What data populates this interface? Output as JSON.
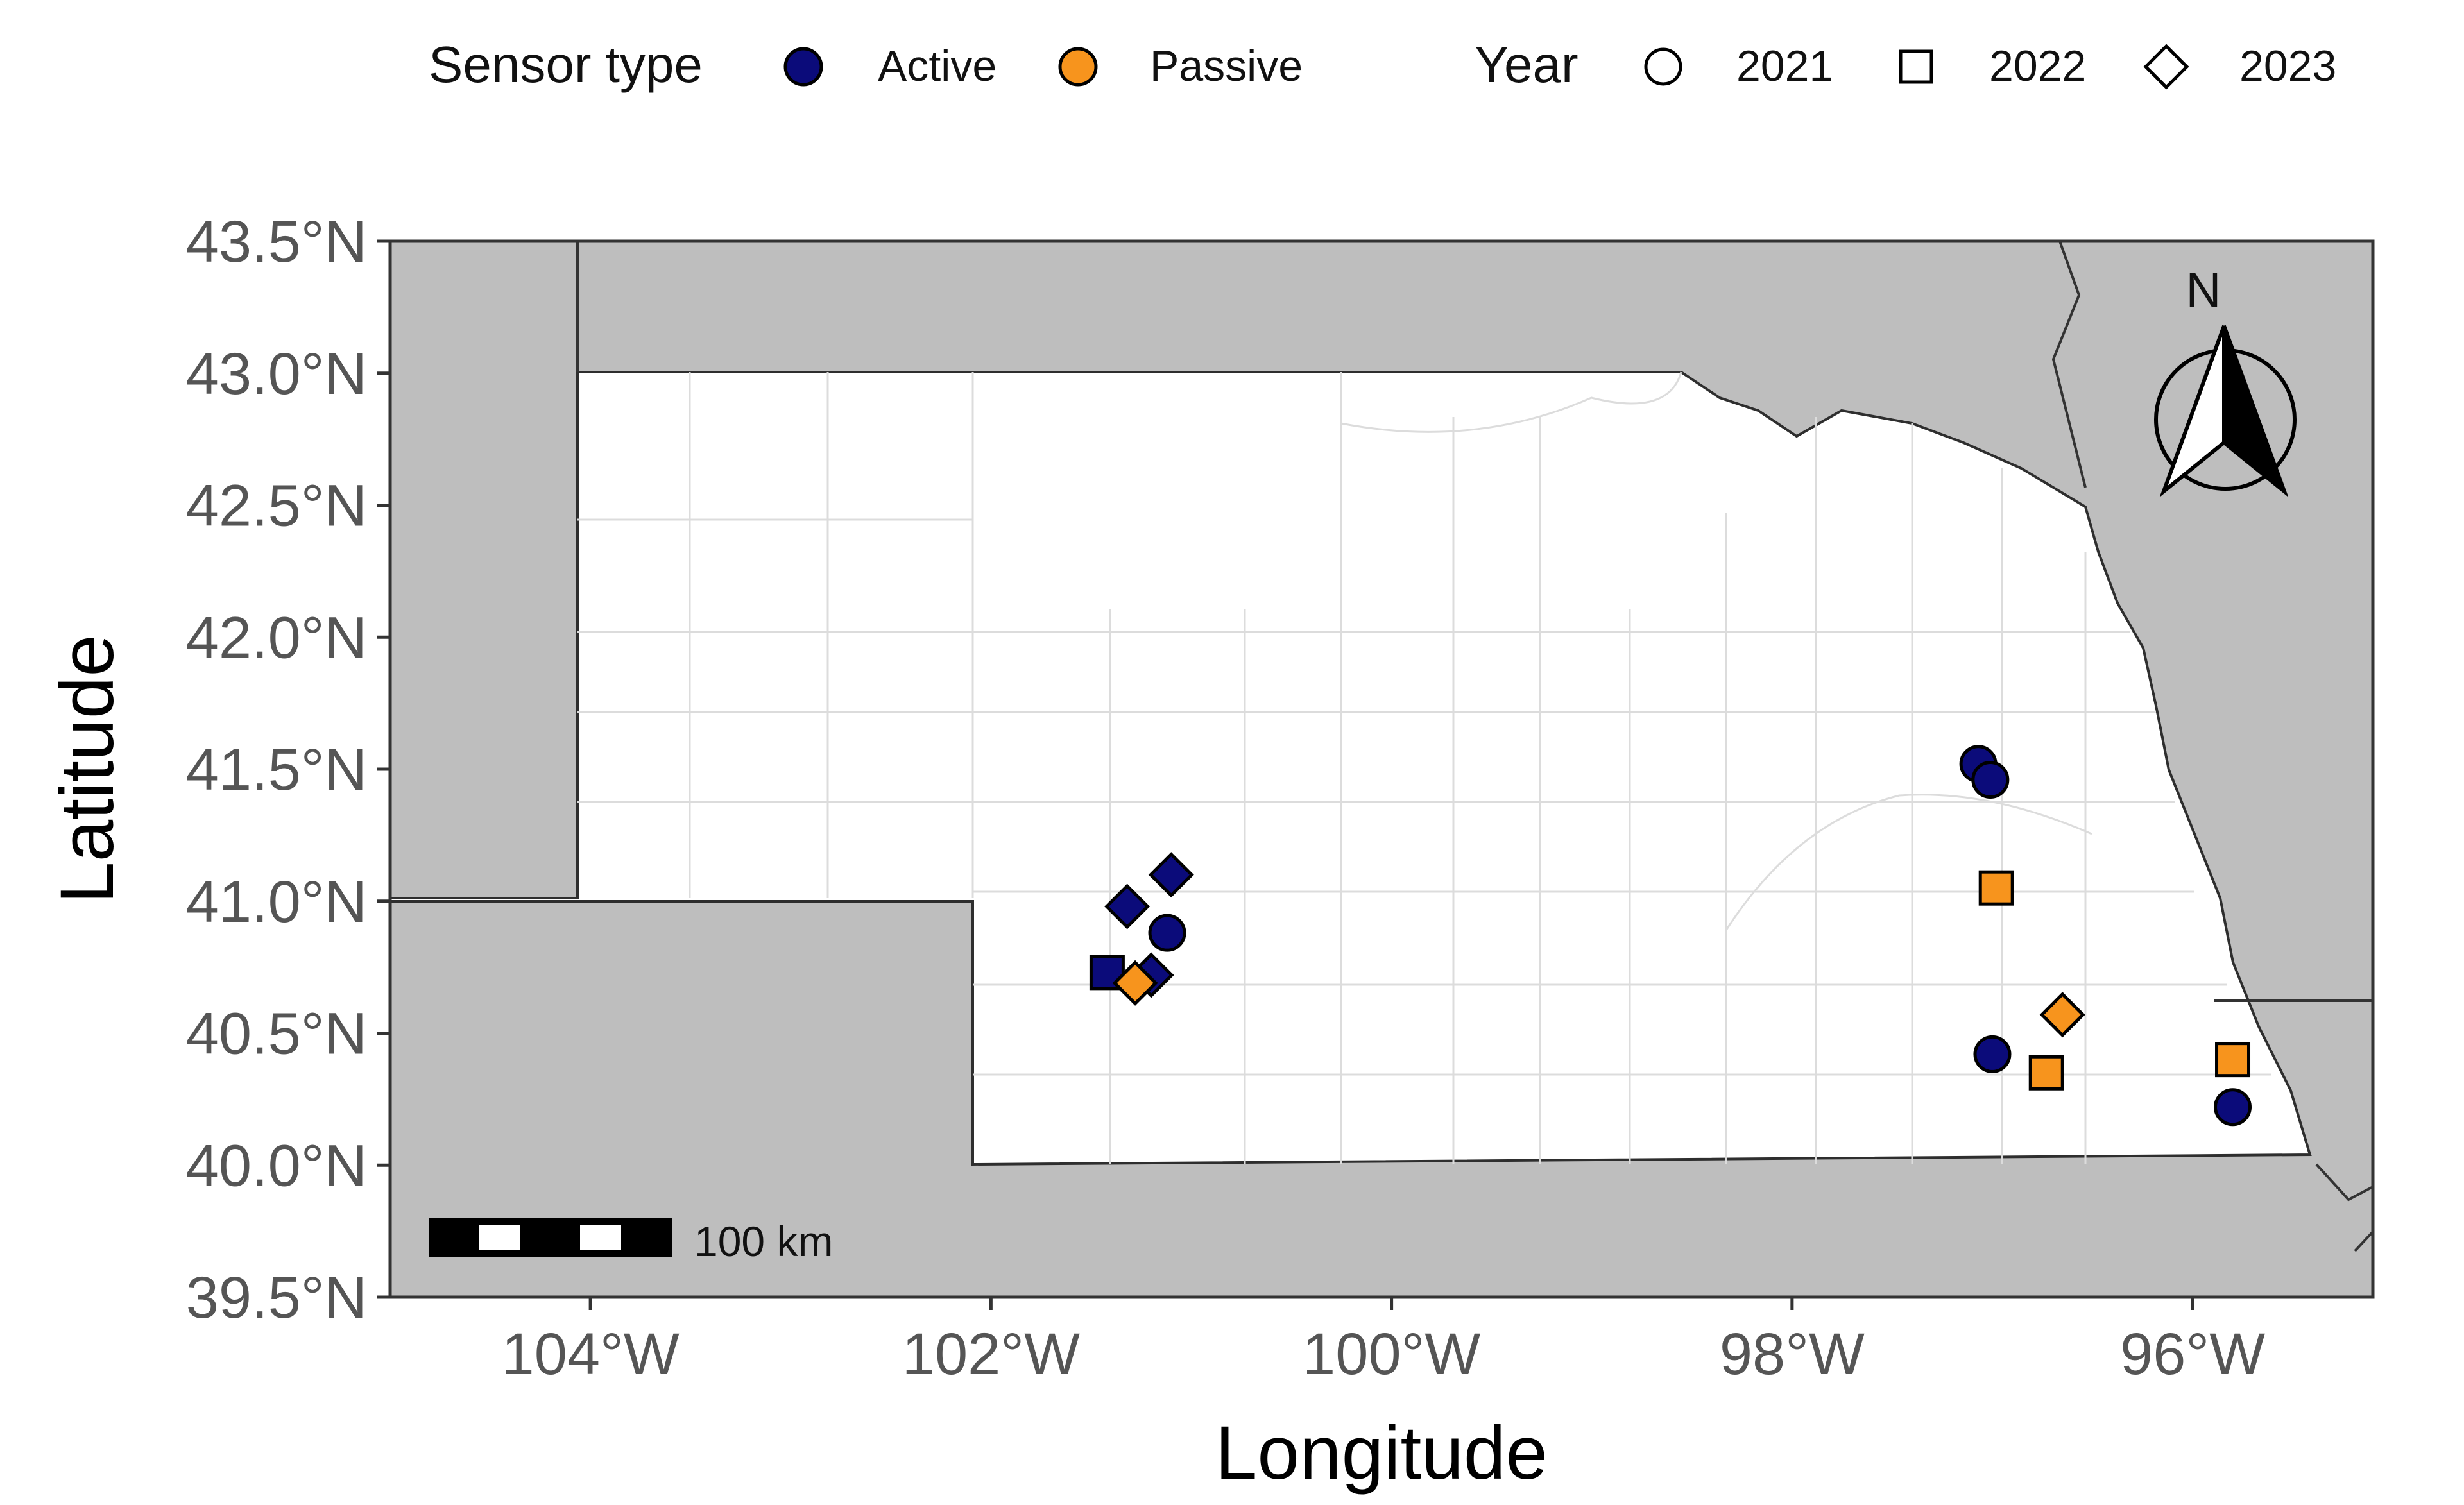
{
  "chart_data": {
    "type": "scatter",
    "xlabel": "Longitude",
    "ylabel": "Latitude",
    "xlim": [
      -105,
      -95.1
    ],
    "ylim": [
      39.5,
      43.5
    ],
    "x_ticks": [
      {
        "value": -104,
        "label": "104°W"
      },
      {
        "value": -102,
        "label": "102°W"
      },
      {
        "value": -100,
        "label": "100°W"
      },
      {
        "value": -98,
        "label": "98°W"
      },
      {
        "value": -96,
        "label": "96°W"
      }
    ],
    "y_ticks": [
      {
        "value": 43.5,
        "label": "43.5°N"
      },
      {
        "value": 43.0,
        "label": "43.0°N"
      },
      {
        "value": 42.5,
        "label": "42.5°N"
      },
      {
        "value": 42.0,
        "label": "42.0°N"
      },
      {
        "value": 41.5,
        "label": "41.5°N"
      },
      {
        "value": 41.0,
        "label": "41.0°N"
      },
      {
        "value": 40.5,
        "label": "40.5°N"
      },
      {
        "value": 40.0,
        "label": "40.0°N"
      },
      {
        "value": 39.5,
        "label": "39.5°N"
      }
    ],
    "grid": false,
    "legend": {
      "placement": "top",
      "color_title": "Sensor type",
      "color_entries": [
        {
          "label": "Active",
          "color": "#0b0b7a"
        },
        {
          "label": "Passive",
          "color": "#f7941d"
        }
      ],
      "shape_title": "Year",
      "shape_entries": [
        {
          "label": "2021",
          "shape": "circle"
        },
        {
          "label": "2022",
          "shape": "square"
        },
        {
          "label": "2023",
          "shape": "diamond"
        }
      ]
    },
    "points": [
      {
        "lon": -101.1,
        "lat": 41.1,
        "sensor": "Active",
        "year": "2023"
      },
      {
        "lon": -101.32,
        "lat": 40.98,
        "sensor": "Active",
        "year": "2023"
      },
      {
        "lon": -101.12,
        "lat": 40.88,
        "sensor": "Active",
        "year": "2021"
      },
      {
        "lon": -101.42,
        "lat": 40.73,
        "sensor": "Active",
        "year": "2022"
      },
      {
        "lon": -101.2,
        "lat": 40.72,
        "sensor": "Active",
        "year": "2023"
      },
      {
        "lon": -101.28,
        "lat": 40.69,
        "sensor": "Passive",
        "year": "2023"
      },
      {
        "lon": -97.07,
        "lat": 41.52,
        "sensor": "Active",
        "year": "2021"
      },
      {
        "lon": -97.01,
        "lat": 41.46,
        "sensor": "Active",
        "year": "2021"
      },
      {
        "lon": -96.98,
        "lat": 41.05,
        "sensor": "Passive",
        "year": "2022"
      },
      {
        "lon": -96.65,
        "lat": 40.57,
        "sensor": "Passive",
        "year": "2023"
      },
      {
        "lon": -97.0,
        "lat": 40.42,
        "sensor": "Active",
        "year": "2021"
      },
      {
        "lon": -96.73,
        "lat": 40.35,
        "sensor": "Passive",
        "year": "2022"
      },
      {
        "lon": -95.8,
        "lat": 40.4,
        "sensor": "Passive",
        "year": "2022"
      },
      {
        "lon": -95.8,
        "lat": 40.22,
        "sensor": "Active",
        "year": "2021"
      }
    ]
  },
  "map": {
    "colors": {
      "land_outside": "#bebebe",
      "state_fill": "#ffffff",
      "county_lines": "#dcdcdc",
      "border": "#333333"
    },
    "scale_bar_label": "100 km",
    "north_arrow_label": "N"
  }
}
